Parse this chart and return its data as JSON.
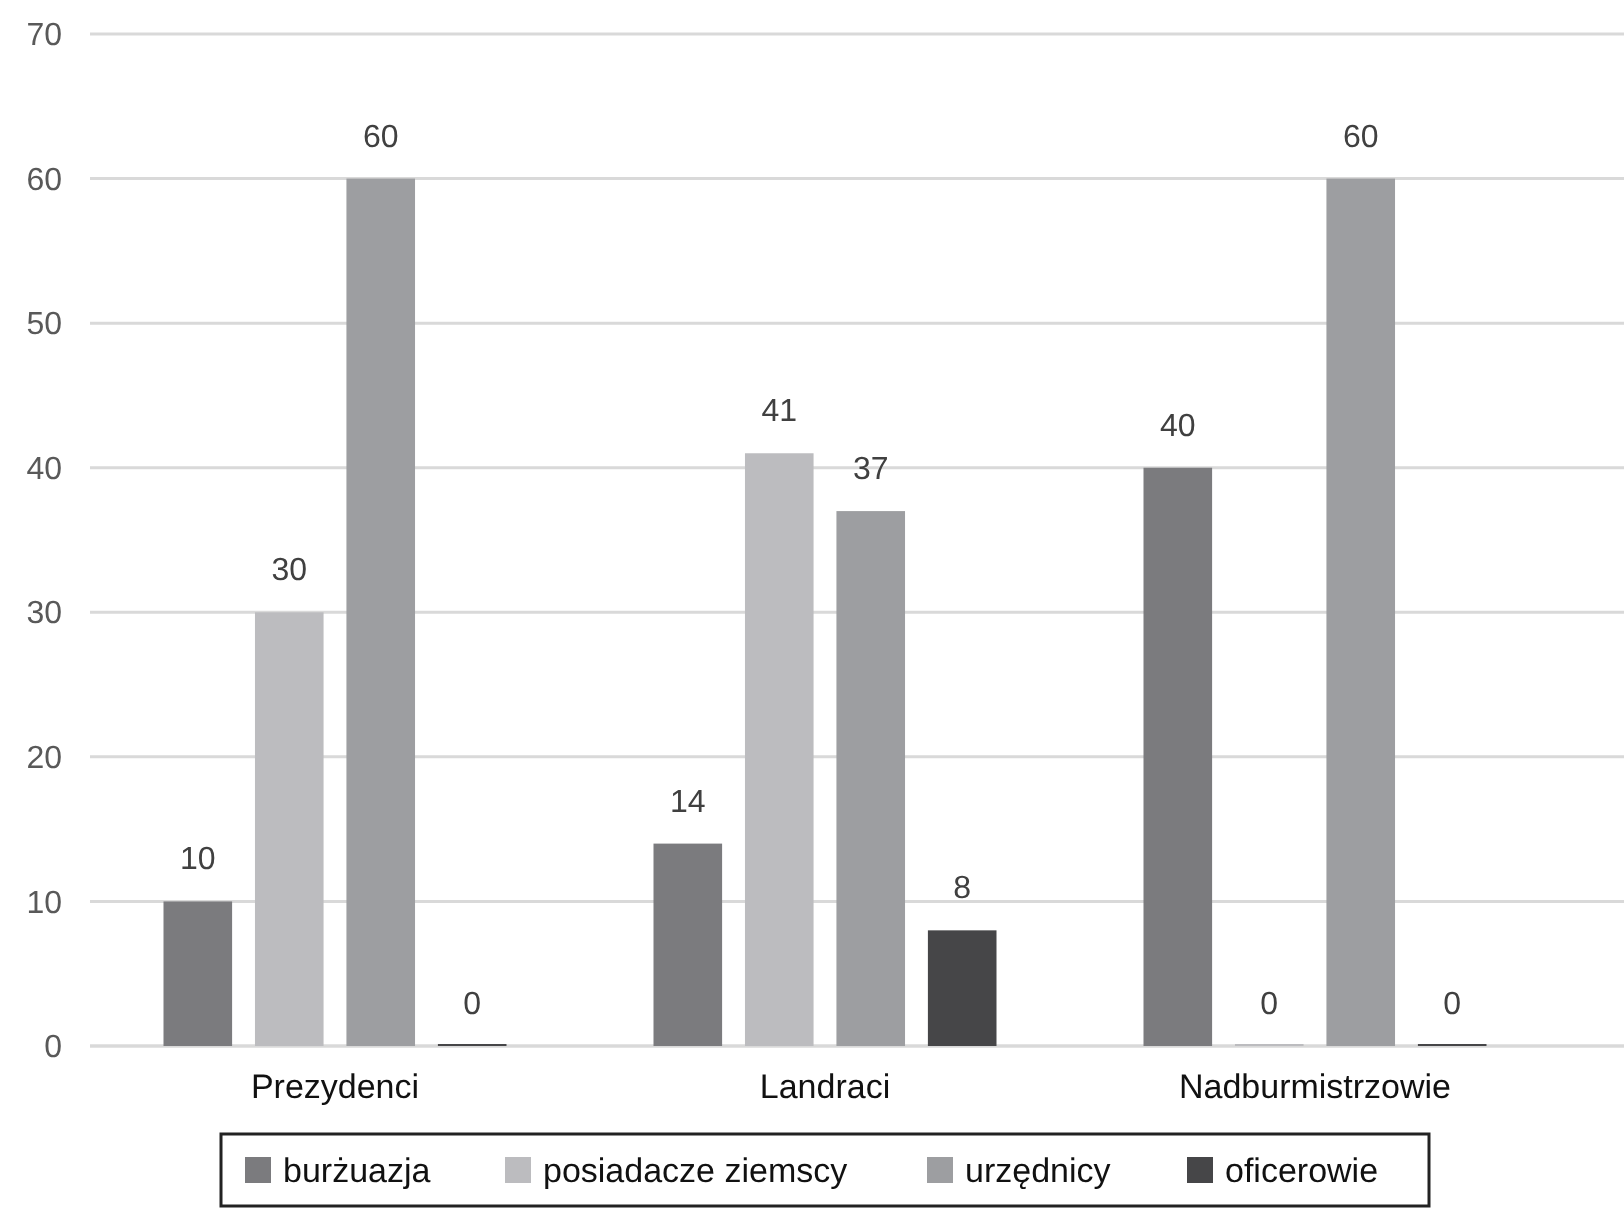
{
  "chart_data": {
    "type": "bar",
    "categories": [
      "Prezydenci",
      "Landraci",
      "Nadburmistrzowie"
    ],
    "series": [
      {
        "name": "burżuazja",
        "color": "#7b7b7e",
        "values": [
          10,
          14,
          40
        ]
      },
      {
        "name": "posiadacze ziemscy",
        "color": "#bcbcbf",
        "values": [
          30,
          41,
          0
        ]
      },
      {
        "name": "urzędnicy",
        "color": "#9d9ea1",
        "values": [
          60,
          37,
          60
        ]
      },
      {
        "name": "oficerowie",
        "color": "#464648",
        "values": [
          0,
          8,
          0
        ]
      }
    ],
    "ylim": [
      0,
      70
    ],
    "yticks": [
      0,
      10,
      20,
      30,
      40,
      50,
      60,
      70
    ],
    "grid": "y",
    "legend": "bottom",
    "data_labels": true
  }
}
